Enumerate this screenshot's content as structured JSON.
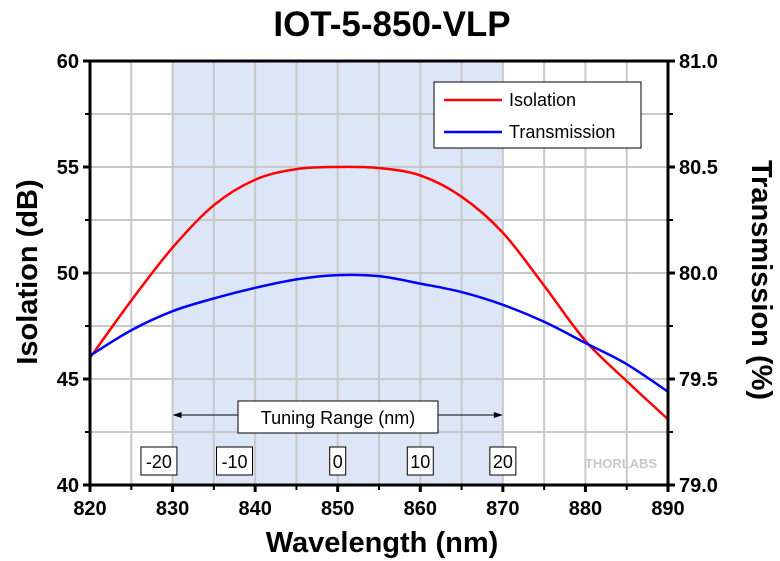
{
  "chart_data": {
    "type": "line",
    "title": "IOT-5-850-VLP",
    "xlabel": "Wavelength (nm)",
    "ylabel": "Isolation (dB)",
    "y2label": "Transmission (%)",
    "xlim": [
      820,
      890
    ],
    "ylim": [
      40,
      60
    ],
    "y2lim": [
      79.0,
      81.0
    ],
    "xticks": [
      820,
      830,
      840,
      850,
      860,
      870,
      880,
      890
    ],
    "xtick_labels": [
      "820",
      "830",
      "840",
      "850",
      "860",
      "870",
      "880",
      "890"
    ],
    "yticks": [
      40,
      45,
      50,
      55,
      60
    ],
    "ytick_labels": [
      "40",
      "45",
      "50",
      "55",
      "60"
    ],
    "y2ticks": [
      79.0,
      79.5,
      80.0,
      80.5,
      81.0
    ],
    "y2tick_labels": [
      "79.0",
      "79.5",
      "80.0",
      "80.5",
      "81.0"
    ],
    "grid": true,
    "legend_position": "top-right",
    "series": [
      {
        "name": "Isolation",
        "axis": "left",
        "color": "#ff0000",
        "x": [
          820,
          825,
          830,
          835,
          840,
          845,
          850,
          855,
          860,
          865,
          870,
          875,
          880,
          885,
          890
        ],
        "values": [
          46.0,
          48.7,
          51.2,
          53.2,
          54.4,
          54.9,
          55.0,
          54.95,
          54.6,
          53.6,
          51.9,
          49.4,
          46.8,
          44.9,
          43.1
        ]
      },
      {
        "name": "Transmission",
        "axis": "right",
        "color": "#0000ff",
        "x": [
          820,
          825,
          830,
          835,
          840,
          845,
          850,
          855,
          860,
          865,
          870,
          875,
          880,
          885,
          890
        ],
        "values": [
          79.61,
          79.73,
          79.82,
          79.88,
          79.93,
          79.97,
          79.99,
          79.985,
          79.95,
          79.91,
          79.85,
          79.77,
          79.67,
          79.57,
          79.44
        ]
      }
    ],
    "shaded_region": {
      "x": [
        830,
        870
      ],
      "color": "#dce6f7"
    },
    "annotations": {
      "tuning_range_label": "Tuning Range (nm)",
      "tuning_range_x": [
        830,
        870
      ],
      "offset_labels": [
        {
          "x": 827.5,
          "text": "-20"
        },
        {
          "x": 837.5,
          "text": "-10"
        },
        {
          "x": 850,
          "text": "0"
        },
        {
          "x": 860,
          "text": "10"
        },
        {
          "x": 870,
          "text": "20"
        }
      ],
      "watermark": "THORLABS"
    }
  }
}
